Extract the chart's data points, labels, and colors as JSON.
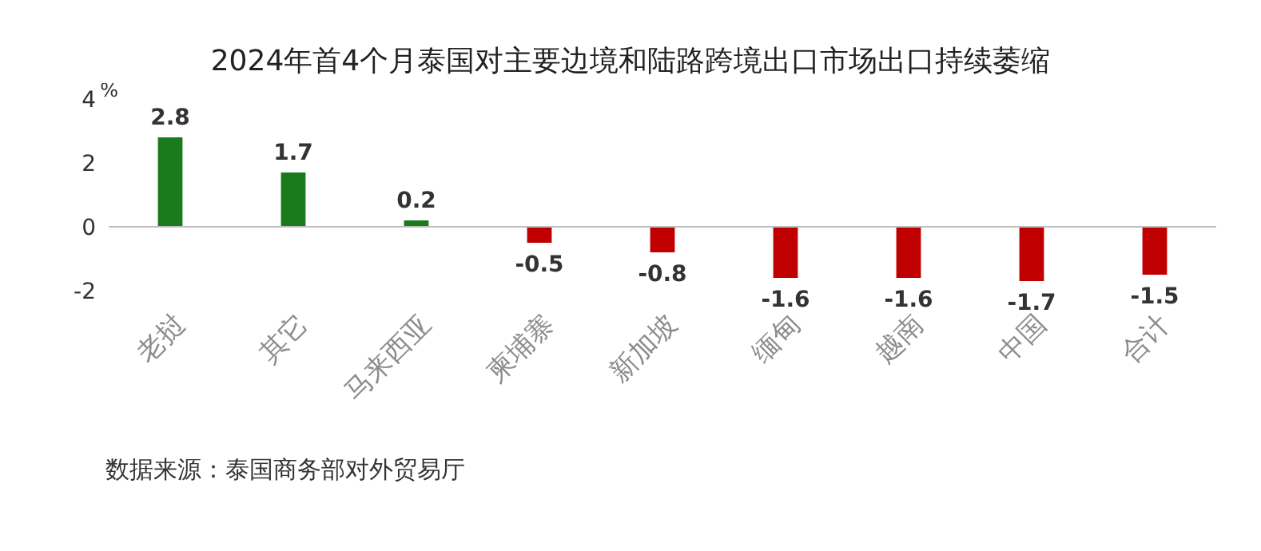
{
  "chart_data": {
    "type": "bar",
    "title": "2024年首4个月泰国对主要边境和陆路跨境出口市场出口持续萎缩",
    "categories": [
      "老挝",
      "其它",
      "马来西亚",
      "柬埔寨",
      "新加坡",
      "缅甸",
      "越南",
      "中国",
      "合计"
    ],
    "values": [
      2.8,
      1.7,
      0.2,
      -0.5,
      -0.8,
      -1.6,
      -1.6,
      -1.7,
      -1.5
    ],
    "colors": [
      "#1b7a1b",
      "#1b7a1b",
      "#1b7a1b",
      "#c00000",
      "#c00000",
      "#c00000",
      "#c00000",
      "#c00000",
      "#c00000"
    ],
    "ylabel": "%",
    "ylim": [
      -2,
      4
    ],
    "yticks": [
      -2,
      0,
      2,
      4
    ],
    "legend": false,
    "data_labels": true,
    "annotations": [
      "数据来源：泰国商务部对外贸易厅"
    ]
  }
}
